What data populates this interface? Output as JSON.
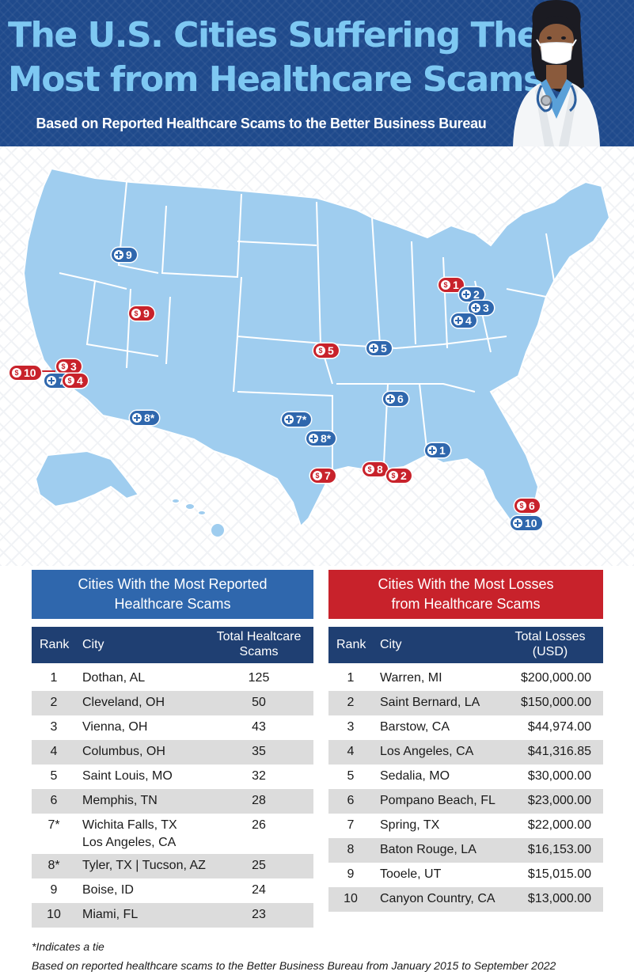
{
  "header": {
    "title_line1": "The U.S. Cities Suffering The",
    "title_line2": "Most from Healthcare Scams",
    "subtitle": "Based on Reported Healthcare Scams to the Better Business Bureau"
  },
  "map": {
    "markers": [
      {
        "id": "boise",
        "type": "reported",
        "label": "9"
      },
      {
        "id": "tooele",
        "type": "losses",
        "label": "9"
      },
      {
        "id": "barstow",
        "type": "losses",
        "label": "3"
      },
      {
        "id": "canyon-country",
        "type": "losses",
        "label": "10"
      },
      {
        "id": "los-angeles-reported",
        "type": "reported",
        "label": "7*"
      },
      {
        "id": "los-angeles-losses",
        "type": "losses",
        "label": "4"
      },
      {
        "id": "tucson",
        "type": "reported",
        "label": "8*"
      },
      {
        "id": "sedalia",
        "type": "losses",
        "label": "5"
      },
      {
        "id": "saint-louis",
        "type": "reported",
        "label": "5"
      },
      {
        "id": "wichita-falls",
        "type": "reported",
        "label": "7*"
      },
      {
        "id": "tyler",
        "type": "reported",
        "label": "8*"
      },
      {
        "id": "spring",
        "type": "losses",
        "label": "7"
      },
      {
        "id": "baton-rouge",
        "type": "losses",
        "label": "8"
      },
      {
        "id": "saint-bernard",
        "type": "losses",
        "label": "2"
      },
      {
        "id": "memphis",
        "type": "reported",
        "label": "6"
      },
      {
        "id": "dothan",
        "type": "reported",
        "label": "1"
      },
      {
        "id": "warren",
        "type": "losses",
        "label": "1"
      },
      {
        "id": "cleveland",
        "type": "reported",
        "label": "2"
      },
      {
        "id": "vienna",
        "type": "reported",
        "label": "3"
      },
      {
        "id": "columbus",
        "type": "reported",
        "label": "4"
      },
      {
        "id": "pompano-beach",
        "type": "losses",
        "label": "6"
      },
      {
        "id": "miami",
        "type": "reported",
        "label": "10"
      }
    ],
    "marker_icons": {
      "reported": "medical-cross-icon",
      "losses": "dollar-icon"
    },
    "colors": {
      "reported": "#2f67ad",
      "losses": "#c8222b",
      "land": "#9fcdef",
      "border": "#ffffff"
    }
  },
  "left_panel": {
    "title_line1": "Cities With the Most Reported",
    "title_line2": "Healthcare Scams",
    "headers": {
      "rank": "Rank",
      "city": "City",
      "value_line1": "Total Healtcare",
      "value_line2": "Scams"
    },
    "rows": [
      {
        "rank": "1",
        "city": "Dothan, AL",
        "city2": "",
        "value": "125"
      },
      {
        "rank": "2",
        "city": "Cleveland, OH",
        "city2": "",
        "value": "50"
      },
      {
        "rank": "3",
        "city": "Vienna, OH",
        "city2": "",
        "value": "43"
      },
      {
        "rank": "4",
        "city": "Columbus, OH",
        "city2": "",
        "value": "35"
      },
      {
        "rank": "5",
        "city": "Saint Louis, MO",
        "city2": "",
        "value": "32"
      },
      {
        "rank": "6",
        "city": "Memphis, TN",
        "city2": "",
        "value": "28"
      },
      {
        "rank": "7*",
        "city": "Wichita Falls, TX",
        "city2": "Los Angeles, CA",
        "value": "26"
      },
      {
        "rank": "8*",
        "city": "Tyler, TX | Tucson, AZ",
        "city2": "",
        "value": "25"
      },
      {
        "rank": "9",
        "city": "Boise, ID",
        "city2": "",
        "value": "24"
      },
      {
        "rank": "10",
        "city": "Miami, FL",
        "city2": "",
        "value": "23"
      }
    ]
  },
  "right_panel": {
    "title_line1": "Cities With the Most Losses",
    "title_line2": "from Healthcare Scams",
    "headers": {
      "rank": "Rank",
      "city": "City",
      "value_line1": "Total Losses",
      "value_line2": "(USD)"
    },
    "rows": [
      {
        "rank": "1",
        "city": "Warren, MI",
        "value": "$200,000.00"
      },
      {
        "rank": "2",
        "city": "Saint Bernard, LA",
        "value": "$150,000.00"
      },
      {
        "rank": "3",
        "city": "Barstow, CA",
        "value": "$44,974.00"
      },
      {
        "rank": "4",
        "city": "Los Angeles, CA",
        "value": "$41,316.85"
      },
      {
        "rank": "5",
        "city": "Sedalia, MO",
        "value": "$30,000.00"
      },
      {
        "rank": "6",
        "city": "Pompano Beach, FL",
        "value": "$23,000.00"
      },
      {
        "rank": "7",
        "city": "Spring, TX",
        "value": "$22,000.00"
      },
      {
        "rank": "8",
        "city": "Baton Rouge, LA",
        "value": "$16,153.00"
      },
      {
        "rank": "9",
        "city": "Tooele, UT",
        "value": "$15,015.00"
      },
      {
        "rank": "10",
        "city": "Canyon Country, CA",
        "value": "$13,000.00"
      }
    ]
  },
  "footnotes": {
    "tie": "*Indicates a tie",
    "source": "Based on reported healthcare scams to the Better Business Bureau from January 2015 to September 2022"
  }
}
